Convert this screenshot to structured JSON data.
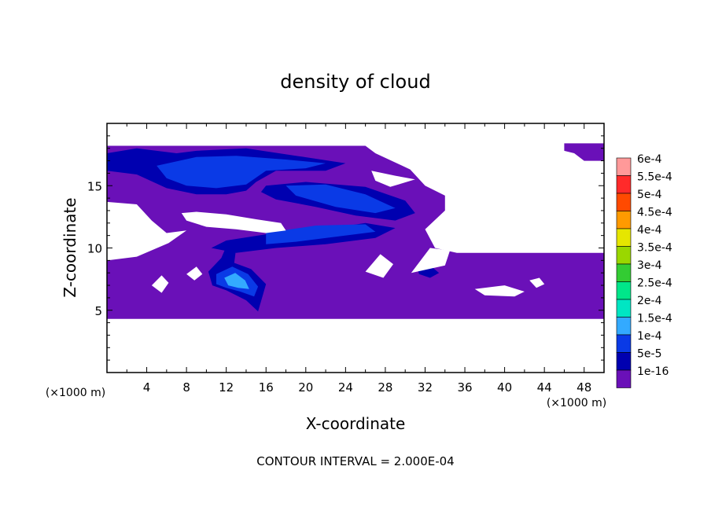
{
  "chart_data": {
    "type": "heatmap",
    "title": "density of cloud",
    "xlabel": "X-coordinate",
    "ylabel": "Z-coordinate",
    "x_unit_left": "(×1000 m)",
    "x_unit_right": "(×1000 m)",
    "xlim": [
      0,
      50
    ],
    "ylim": [
      0,
      20
    ],
    "xticks": [
      4,
      8,
      12,
      16,
      20,
      24,
      28,
      32,
      36,
      40,
      44,
      48
    ],
    "yticks": [
      5,
      10,
      15
    ],
    "grid": false,
    "legend_position": "right",
    "footer": "CONTOUR INTERVAL = 2.000E-04",
    "colorbar": {
      "labels": [
        "6e-4",
        "5.5e-4",
        "5e-4",
        "4.5e-4",
        "4e-4",
        "3.5e-4",
        "3e-4",
        "2.5e-4",
        "2e-4",
        "1.5e-4",
        "1e-4",
        "5e-5",
        "1e-16"
      ],
      "colors": [
        "#ff9999",
        "#ff2a2a",
        "#ff4a00",
        "#ff9a00",
        "#e6e600",
        "#9ad700",
        "#33cc33",
        "#00e68a",
        "#00e6c3",
        "#33aaff",
        "#0a3ae6",
        "#0000b0",
        "#6a10b8"
      ]
    },
    "regions": [
      {
        "level": "1e-16",
        "shape": [
          [
            0,
            18.2
          ],
          [
            26,
            18.2
          ],
          [
            27,
            17.6
          ],
          [
            30.5,
            16.3
          ],
          [
            32,
            15
          ],
          [
            34,
            14.2
          ],
          [
            34,
            13
          ],
          [
            32,
            11.5
          ],
          [
            33,
            10
          ],
          [
            35.2,
            9.6
          ],
          [
            50,
            9.6
          ],
          [
            50,
            4.3
          ],
          [
            0,
            4.3
          ]
        ]
      },
      {
        "level": "1e-16",
        "shape": [
          [
            46,
            18.4
          ],
          [
            50,
            18.4
          ],
          [
            50,
            17
          ],
          [
            48,
            17
          ],
          [
            47,
            17.6
          ],
          [
            46,
            17.8
          ]
        ]
      },
      {
        "level": "5e-5",
        "shape": [
          [
            0,
            17.6
          ],
          [
            3,
            18
          ],
          [
            7,
            17.6
          ],
          [
            9,
            17.8
          ],
          [
            14,
            18
          ],
          [
            19,
            17.4
          ],
          [
            24,
            16.8
          ],
          [
            22,
            16.2
          ],
          [
            17,
            16.2
          ],
          [
            15,
            15.3
          ],
          [
            14,
            14.6
          ],
          [
            12,
            14.3
          ],
          [
            9,
            14.3
          ],
          [
            6,
            14.8
          ],
          [
            3,
            15.9
          ],
          [
            0,
            16.2
          ]
        ]
      },
      {
        "level": "5e-5",
        "shape": [
          [
            16,
            15
          ],
          [
            20,
            15.3
          ],
          [
            26,
            14.9
          ],
          [
            30,
            13.8
          ],
          [
            31,
            12.8
          ],
          [
            29,
            12.2
          ],
          [
            25,
            12.6
          ],
          [
            21,
            13.3
          ],
          [
            17,
            13.9
          ],
          [
            15.5,
            14.5
          ]
        ]
      },
      {
        "level": "5e-5",
        "shape": [
          [
            10.5,
            10
          ],
          [
            12,
            10.6
          ],
          [
            16,
            11.1
          ],
          [
            21,
            11.4
          ],
          [
            26,
            12
          ],
          [
            29,
            11.6
          ],
          [
            27,
            10.8
          ],
          [
            22,
            10.3
          ],
          [
            17,
            10
          ],
          [
            13,
            9.6
          ]
        ]
      },
      {
        "level": "1e-4",
        "shape": [
          [
            5,
            16.6
          ],
          [
            9,
            17.3
          ],
          [
            13,
            17.4
          ],
          [
            18,
            17.1
          ],
          [
            22,
            16.8
          ],
          [
            20,
            16.4
          ],
          [
            16,
            16.2
          ],
          [
            14,
            15.1
          ],
          [
            11,
            14.8
          ],
          [
            8,
            15
          ],
          [
            6,
            15.6
          ]
        ]
      },
      {
        "level": "1e-4",
        "shape": [
          [
            18,
            15
          ],
          [
            22,
            15.1
          ],
          [
            26,
            14.3
          ],
          [
            29,
            13.2
          ],
          [
            27,
            12.8
          ],
          [
            23,
            13.3
          ],
          [
            19,
            14.2
          ]
        ]
      },
      {
        "level": "1e-4",
        "shape": [
          [
            16,
            11.2
          ],
          [
            21,
            11.8
          ],
          [
            26,
            11.9
          ],
          [
            27,
            11.3
          ],
          [
            23,
            10.9
          ],
          [
            19,
            10.5
          ],
          [
            16,
            10.3
          ]
        ]
      },
      {
        "level": "5e-5",
        "shape": [
          [
            12.2,
            10.5
          ],
          [
            13,
            10
          ],
          [
            12.8,
            8.8
          ],
          [
            14.5,
            8.3
          ],
          [
            16,
            7.1
          ],
          [
            15.6,
            6
          ],
          [
            15.2,
            4.9
          ],
          [
            14,
            5.8
          ],
          [
            12,
            6.6
          ],
          [
            10.6,
            7
          ],
          [
            10.2,
            8.1
          ],
          [
            11.5,
            9.2
          ]
        ]
      },
      {
        "level": "1e-4",
        "shape": [
          [
            11,
            7.9
          ],
          [
            12.6,
            8.5
          ],
          [
            14.2,
            7.9
          ],
          [
            15.2,
            6.9
          ],
          [
            14.8,
            6.1
          ],
          [
            13.4,
            6.5
          ],
          [
            12,
            6.8
          ],
          [
            11,
            7.1
          ]
        ]
      },
      {
        "level": "1.5e-4",
        "shape": [
          [
            11.8,
            7.6
          ],
          [
            12.9,
            8
          ],
          [
            13.9,
            7.4
          ],
          [
            14.3,
            6.7
          ],
          [
            13.2,
            6.8
          ],
          [
            12.2,
            7
          ]
        ]
      },
      {
        "level": "5e-5",
        "shape": [
          [
            31.2,
            8.4
          ],
          [
            32.5,
            8.6
          ],
          [
            33.4,
            8
          ],
          [
            32.5,
            7.6
          ],
          [
            31.4,
            7.9
          ]
        ]
      }
    ],
    "holes": [
      {
        "shape": [
          [
            0,
            13.7
          ],
          [
            3,
            13.5
          ],
          [
            4.5,
            12.2
          ],
          [
            6,
            11.2
          ],
          [
            8,
            11.4
          ],
          [
            6.2,
            10.4
          ],
          [
            3,
            9.3
          ],
          [
            0,
            9
          ]
        ]
      },
      {
        "shape": [
          [
            7.5,
            12.8
          ],
          [
            9,
            12.9
          ],
          [
            12,
            12.7
          ],
          [
            15,
            12.3
          ],
          [
            17.5,
            12
          ],
          [
            18,
            11.4
          ],
          [
            16,
            11.2
          ],
          [
            13,
            11.5
          ],
          [
            10,
            11.7
          ],
          [
            8,
            12.2
          ]
        ]
      },
      {
        "shape": [
          [
            26.6,
            16.2
          ],
          [
            29,
            15.8
          ],
          [
            31,
            15.5
          ],
          [
            28.5,
            14.9
          ],
          [
            27,
            15.4
          ]
        ]
      },
      {
        "shape": [
          [
            30.6,
            8
          ],
          [
            32.5,
            10
          ],
          [
            34.5,
            9.8
          ],
          [
            34,
            8.6
          ]
        ]
      },
      {
        "shape": [
          [
            26,
            8.1
          ],
          [
            27.5,
            9.5
          ],
          [
            28.8,
            8.7
          ],
          [
            27.8,
            7.6
          ]
        ]
      },
      {
        "shape": [
          [
            37,
            6.7
          ],
          [
            40,
            7
          ],
          [
            42,
            6.5
          ],
          [
            41,
            6.1
          ],
          [
            38,
            6.2
          ]
        ]
      },
      {
        "shape": [
          [
            4.5,
            7
          ],
          [
            5.5,
            7.8
          ],
          [
            6.2,
            7.2
          ],
          [
            5.5,
            6.4
          ]
        ]
      },
      {
        "shape": [
          [
            8,
            7.9
          ],
          [
            9,
            8.5
          ],
          [
            9.6,
            7.9
          ],
          [
            8.8,
            7.4
          ]
        ]
      },
      {
        "shape": [
          [
            42.5,
            7.4
          ],
          [
            43.5,
            7.6
          ],
          [
            44,
            7.1
          ],
          [
            43.2,
            6.8
          ]
        ]
      }
    ]
  }
}
